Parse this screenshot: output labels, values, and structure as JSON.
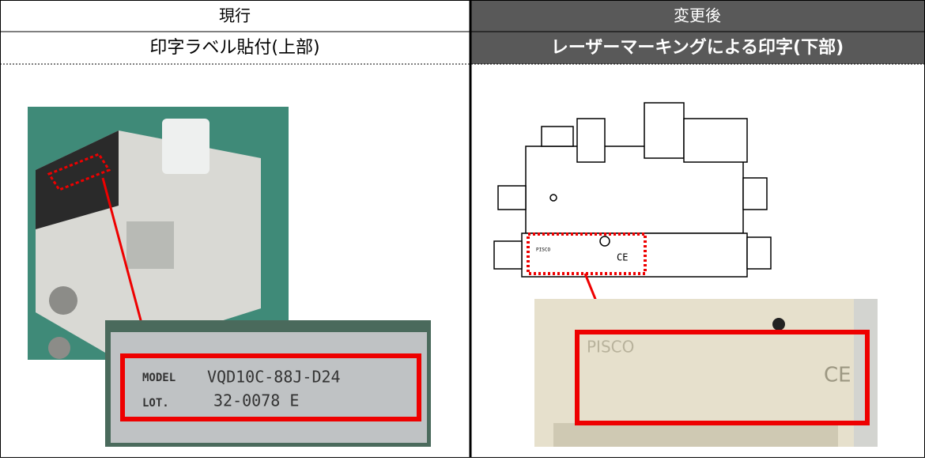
{
  "table": {
    "header": [
      "現行",
      "変更後"
    ],
    "subheader": [
      "印字ラベル貼付(上部)",
      "レーザーマーキングによる印字(下部)"
    ]
  },
  "images": {
    "current_label": {
      "line1_key": "MODEL",
      "line1_value": "VQD10C-88J-D24",
      "line2_key": "LOT.",
      "line2_value": "32-0078 E"
    },
    "new_marking": {
      "brand": "PISCO",
      "mark": "CE"
    }
  }
}
